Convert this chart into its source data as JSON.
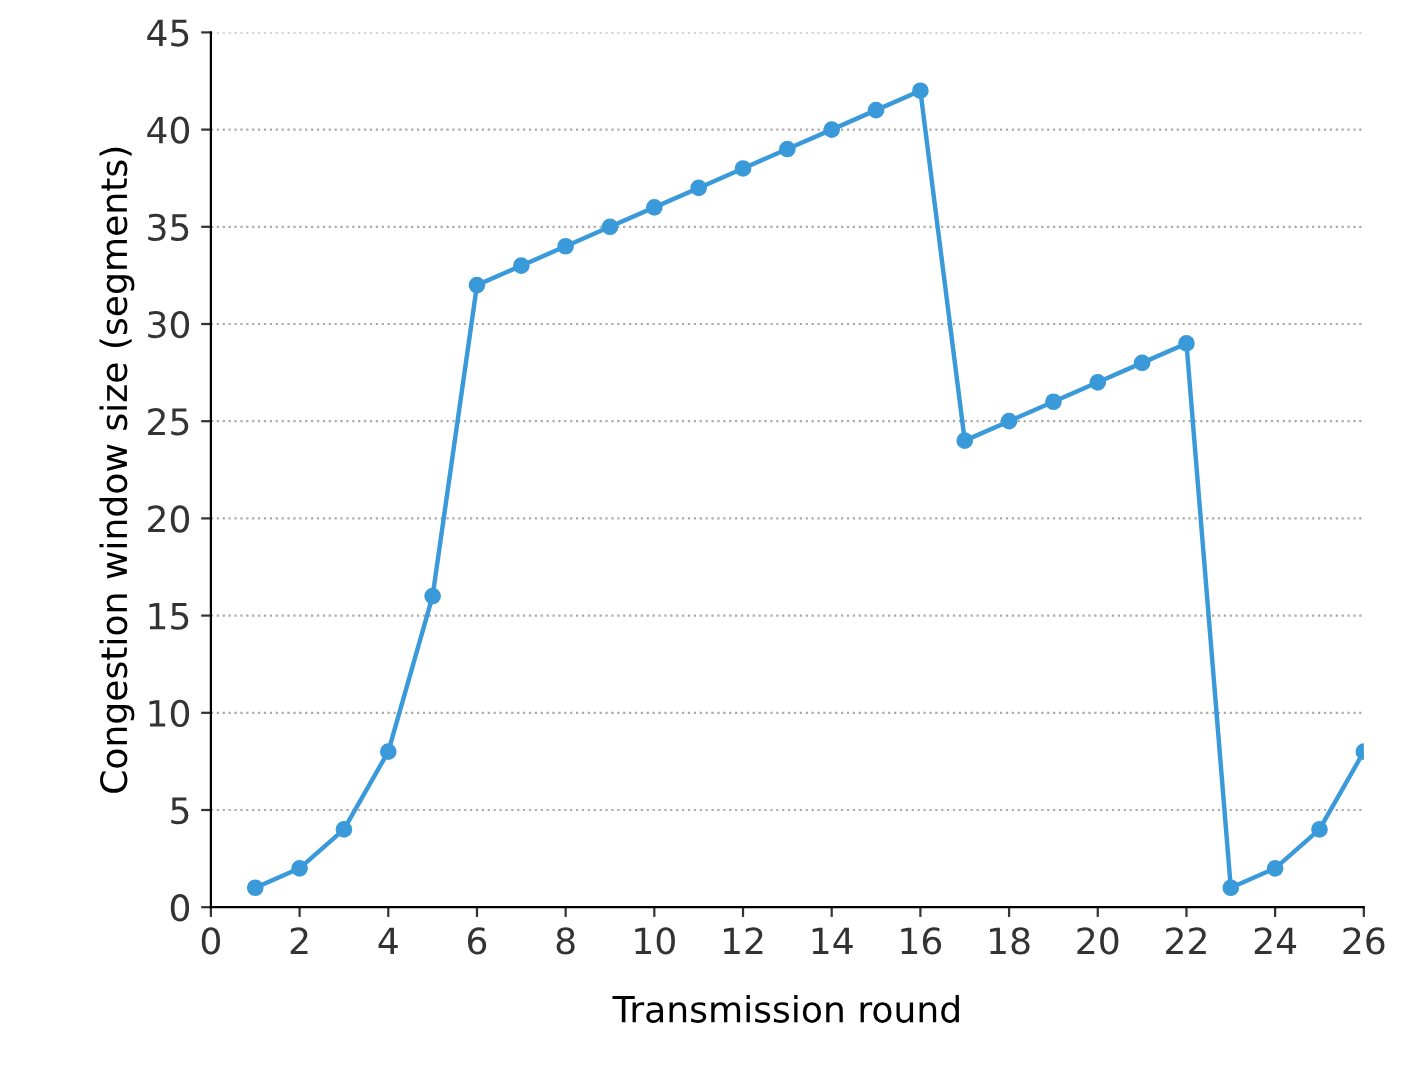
{
  "chart_data": {
    "type": "line",
    "xlabel": "Transmission round",
    "ylabel": "Congestion window size (segments)",
    "x": [
      1,
      2,
      3,
      4,
      5,
      6,
      7,
      8,
      9,
      10,
      11,
      12,
      13,
      14,
      15,
      16,
      17,
      18,
      19,
      20,
      21,
      22,
      23,
      24,
      25,
      26
    ],
    "series": [
      {
        "color": "#3a9ad9",
        "values": [
          1,
          2,
          4,
          8,
          16,
          32,
          33,
          34,
          35,
          36,
          37,
          38,
          39,
          40,
          41,
          42,
          24,
          25,
          26,
          27,
          28,
          29,
          1,
          2,
          4,
          8
        ]
      }
    ],
    "xlim": [
      0,
      26
    ],
    "xticks": [
      0,
      2,
      4,
      6,
      8,
      10,
      12,
      14,
      16,
      18,
      20,
      22,
      24,
      26
    ],
    "ylim": [
      0,
      45
    ],
    "yticks": [
      0,
      5,
      10,
      15,
      20,
      25,
      30,
      35,
      40,
      45
    ],
    "grid": "y",
    "marker": "circle",
    "line_style": "solid"
  }
}
